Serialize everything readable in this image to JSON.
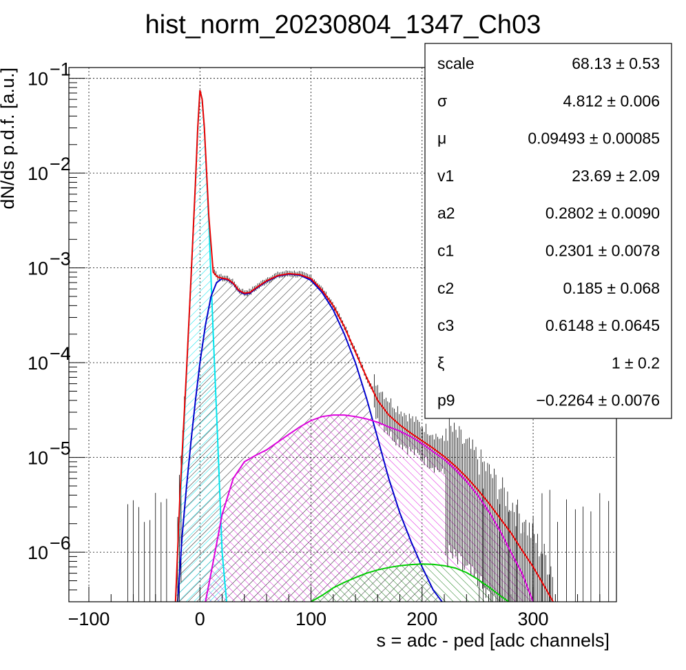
{
  "chart_data": {
    "type": "line",
    "title": "hist_norm_20230804_1347_Ch03",
    "xlabel": "s = adc - ped [adc channels]",
    "ylabel": "dN/ds p.d.f. [a.u.]",
    "xlim": [
      -118,
      375
    ],
    "ylim": [
      3e-07,
      0.13
    ],
    "yscale": "log",
    "grid": true,
    "legend": "top-right",
    "x_ticks": [
      {
        "v": -100,
        "label": "−100"
      },
      {
        "v": 0,
        "label": "0"
      },
      {
        "v": 100,
        "label": "100"
      },
      {
        "v": 200,
        "label": "200"
      },
      {
        "v": 300,
        "label": "300"
      }
    ],
    "y_ticks": [
      {
        "v": 0.1,
        "base": "10",
        "exp": "−1"
      },
      {
        "v": 0.01,
        "base": "10",
        "exp": "−2"
      },
      {
        "v": 0.001,
        "base": "10",
        "exp": "−3"
      },
      {
        "v": 0.0001,
        "base": "10",
        "exp": "−4"
      },
      {
        "v": 1e-05,
        "base": "10",
        "exp": "−5"
      },
      {
        "v": 1e-06,
        "base": "10",
        "exp": "−6"
      }
    ],
    "stats": [
      {
        "name": "scale",
        "value": "68.13 ± 0.53"
      },
      {
        "name": "σ",
        "value": "4.812 ± 0.006"
      },
      {
        "name": "μ",
        "value": "0.09493 ± 0.00085"
      },
      {
        "name": "v1",
        "value": "23.69 ± 2.09"
      },
      {
        "name": "a2",
        "value": "0.2802 ± 0.0090"
      },
      {
        "name": "c1",
        "value": "0.2301 ± 0.0078"
      },
      {
        "name": "c2",
        "value": "0.185 ± 0.068"
      },
      {
        "name": "c3",
        "value": "0.6148 ± 0.0645"
      },
      {
        "name": "ξ",
        "value": "1 ± 0.2"
      },
      {
        "name": "p9",
        "value": "−0.2264 ± 0.0076"
      }
    ],
    "series": [
      {
        "color": "#00e5ee",
        "hatch": true,
        "x": [
          -22,
          -18,
          -12,
          -8,
          -4,
          -2,
          0,
          2,
          4,
          8,
          12,
          16,
          20,
          24
        ],
        "y": [
          3e-07,
          3e-06,
          8e-05,
          0.0008,
          0.008,
          0.03,
          0.075,
          0.06,
          0.03,
          0.003,
          0.0002,
          1.5e-05,
          1e-06,
          3e-07
        ]
      },
      {
        "color": "#0000cc",
        "hatch": true,
        "x": [
          -20,
          -16,
          -12,
          -8,
          -4,
          0,
          5,
          10,
          15,
          20,
          25,
          30,
          35,
          40,
          45,
          50,
          60,
          70,
          80,
          90,
          100,
          110,
          120,
          130,
          140,
          150,
          160,
          170,
          180,
          190,
          200,
          210,
          218
        ],
        "y": [
          3e-07,
          1.5e-06,
          5e-06,
          1.5e-05,
          4e-05,
          0.0001,
          0.00025,
          0.0005,
          0.0007,
          0.00077,
          0.00075,
          0.00068,
          0.00057,
          0.00053,
          0.00054,
          0.0006,
          0.00072,
          0.00082,
          0.00086,
          0.00084,
          0.00074,
          0.00055,
          0.00036,
          0.0002,
          0.0001,
          4.2e-05,
          1.6e-05,
          6e-06,
          2.6e-06,
          1.3e-06,
          7e-07,
          4e-07,
          3e-07
        ]
      },
      {
        "color": "#dd00dd",
        "hatch": true,
        "x": [
          5,
          10,
          20,
          30,
          40,
          50,
          60,
          70,
          80,
          90,
          100,
          110,
          120,
          130,
          140,
          150,
          160,
          170,
          180,
          190,
          200,
          210,
          220,
          230,
          240,
          250,
          260,
          270,
          280,
          290,
          300
        ],
        "y": [
          3e-07,
          6e-07,
          2.5e-06,
          6e-06,
          9e-06,
          1.05e-05,
          1.2e-05,
          1.45e-05,
          1.75e-05,
          2.1e-05,
          2.45e-05,
          2.7e-05,
          2.8e-05,
          2.8e-05,
          2.7e-05,
          2.55e-05,
          2.35e-05,
          2.1e-05,
          1.9e-05,
          1.65e-05,
          1.4e-05,
          1.15e-05,
          9.5e-06,
          7.5e-06,
          5.6e-06,
          4e-06,
          2.7e-06,
          1.7e-06,
          1e-06,
          6e-07,
          3e-07
        ]
      },
      {
        "color": "#00cc00",
        "hatch": true,
        "x": [
          100,
          110,
          120,
          130,
          140,
          150,
          160,
          170,
          180,
          190,
          200,
          210,
          220,
          230,
          240,
          250,
          260,
          270,
          278
        ],
        "y": [
          3e-07,
          3.5e-07,
          4.2e-07,
          4.8e-07,
          5.4e-07,
          6e-07,
          6.5e-07,
          6.9e-07,
          7.2e-07,
          7.4e-07,
          7.5e-07,
          7.45e-07,
          7.2e-07,
          6.8e-07,
          6.1e-07,
          5.2e-07,
          4.3e-07,
          3.5e-07,
          3e-07
        ]
      },
      {
        "color": "#ee0000",
        "hatch": false,
        "x": [
          -22,
          -18,
          -12,
          -8,
          -4,
          -2,
          0,
          2,
          4,
          8,
          12,
          16,
          20,
          25,
          30,
          35,
          40,
          45,
          50,
          60,
          70,
          80,
          90,
          100,
          110,
          120,
          130,
          140,
          150,
          160,
          170,
          180,
          190,
          200,
          210,
          220,
          230,
          240,
          250,
          260,
          270,
          280,
          290,
          300,
          310,
          318
        ],
        "y": [
          3e-07,
          4e-06,
          8.5e-05,
          0.0008,
          0.008,
          0.03,
          0.075,
          0.06,
          0.03,
          0.0035,
          0.0009,
          0.0008,
          0.00078,
          0.00076,
          0.00069,
          0.00058,
          0.00054,
          0.00055,
          0.00061,
          0.00073,
          0.00083,
          0.00087,
          0.00085,
          0.00077,
          0.00058,
          0.0004,
          0.00024,
          0.00013,
          7e-05,
          4e-05,
          2.8e-05,
          2.2e-05,
          1.8e-05,
          1.5e-05,
          1.25e-05,
          1.02e-05,
          8.1e-06,
          6.2e-06,
          4.6e-06,
          3.3e-06,
          2.3e-06,
          1.6e-06,
          1.05e-06,
          7e-07,
          4.4e-07,
          3e-07
        ]
      }
    ]
  }
}
